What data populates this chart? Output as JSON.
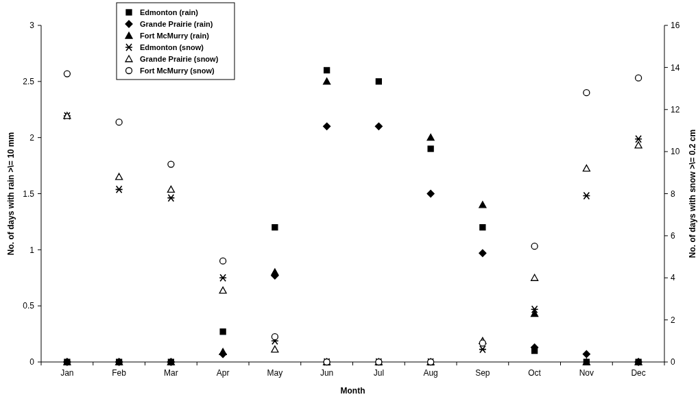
{
  "chart_data": {
    "type": "scatter",
    "xlabel": "Month",
    "ylabel": "No. of days with rain >\\= 10 mm",
    "y2label": "No. of days with snow >\\= 0.2 cm",
    "categories": [
      "Jan",
      "Feb",
      "Mar",
      "Apr",
      "May",
      "Jun",
      "Jul",
      "Aug",
      "Sep",
      "Oct",
      "Nov",
      "Dec"
    ],
    "ylim": [
      0,
      3
    ],
    "yticks": [
      0,
      0.5,
      1,
      1.5,
      2,
      2.5,
      3
    ],
    "y2lim": [
      0,
      16
    ],
    "y2ticks": [
      0,
      2,
      4,
      6,
      8,
      10,
      12,
      14,
      16
    ],
    "grid": false,
    "legend": "top left",
    "series": [
      {
        "name": "Edmonton (rain)",
        "color": "#000000",
        "marker": "square",
        "values": [
          0,
          0,
          0,
          0.27,
          1.2,
          2.6,
          2.5,
          1.9,
          1.2,
          0.1,
          0,
          0
        ]
      },
      {
        "name": "Grande Prairie (rain)",
        "color": "#000000",
        "marker": "diamond",
        "values": [
          0,
          0,
          0,
          0.07,
          0.77,
          2.1,
          2.1,
          1.5,
          0.97,
          0.13,
          0.07,
          0
        ]
      },
      {
        "name": "Fort McMurry (rain)",
        "color": "#000000",
        "marker": "triangle",
        "values": [
          0,
          0,
          0,
          0.09,
          0.8,
          2.5,
          null,
          2.0,
          1.4,
          0.43,
          0,
          0
        ]
      },
      {
        "name": "Edmonton (snow)",
        "color": "#000000",
        "marker": "cross",
        "axis": "y2",
        "values": [
          11.7,
          8.2,
          7.8,
          4.0,
          1.0,
          0,
          0,
          0,
          0.6,
          2.5,
          7.9,
          10.6
        ]
      },
      {
        "name": "Grande Prairie (snow)",
        "color": "#000000",
        "marker": "triangle",
        "axis": "y2",
        "values": [
          11.7,
          8.8,
          8.2,
          3.4,
          0.6,
          0,
          0,
          0,
          1.0,
          4.0,
          9.2,
          10.3
        ]
      },
      {
        "name": "Fort McMurry (snow)",
        "color": "#000000",
        "marker": "circle",
        "axis": "y2",
        "values": [
          13.7,
          11.4,
          9.4,
          4.8,
          1.2,
          0,
          0,
          0,
          0.9,
          5.5,
          12.8,
          13.5
        ]
      }
    ]
  }
}
